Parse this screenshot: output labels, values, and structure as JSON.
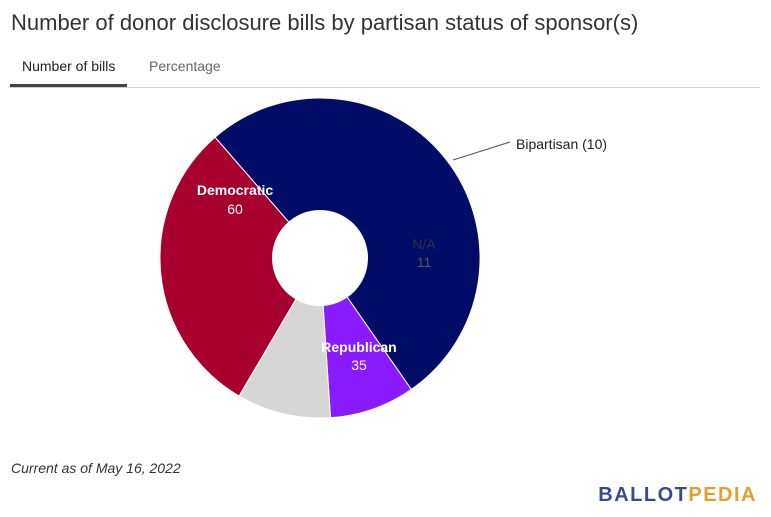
{
  "title": "Number of donor disclosure bills by partisan status of sponsor(s)",
  "tabs": [
    {
      "label": "Number of bills",
      "active": true
    },
    {
      "label": "Percentage",
      "active": false
    }
  ],
  "chart_data": {
    "type": "pie",
    "donut": true,
    "slices": [
      {
        "name": "Democratic",
        "value": 60,
        "color": "#000c66"
      },
      {
        "name": "Bipartisan",
        "value": 10,
        "color": "#8a1bff"
      },
      {
        "name": "N/A",
        "value": 11,
        "color": "#d6d6d6"
      },
      {
        "name": "Republican",
        "value": 35,
        "color": "#a8002e"
      }
    ],
    "callout_label": "Bipartisan (10)"
  },
  "footnote": "Current as of May 16, 2022",
  "logo": {
    "part_a": "BALLOT",
    "part_b": "PEDIA"
  }
}
